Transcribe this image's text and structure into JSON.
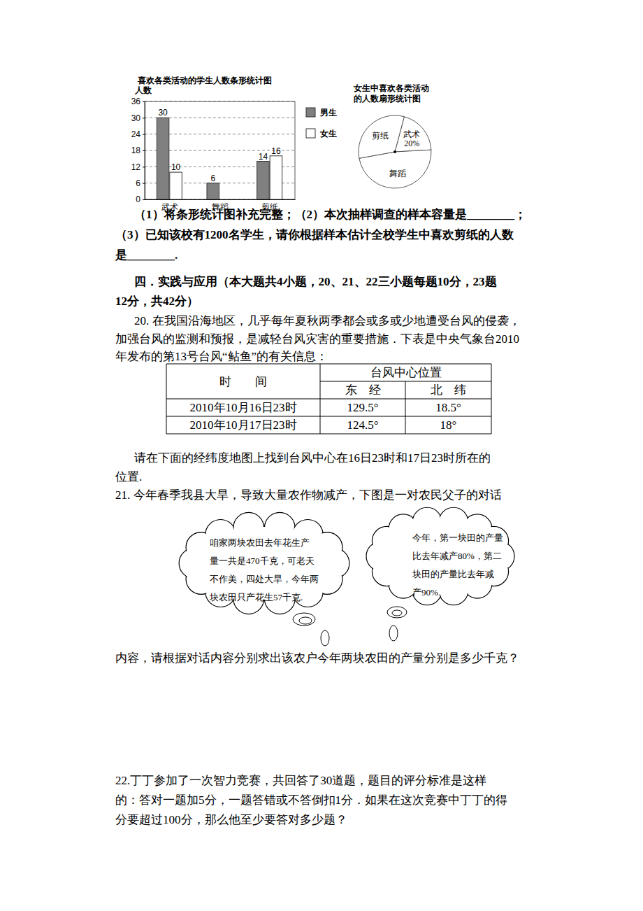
{
  "chart_data": [
    {
      "type": "bar",
      "title": "喜欢各类活动的学生人数条形统计图",
      "y_label": "人数",
      "categories": [
        "武术",
        "舞蹈",
        "剪纸"
      ],
      "series": [
        {
          "name": "男生",
          "color": "#808080",
          "values": [
            30,
            6,
            14
          ]
        },
        {
          "name": "女生",
          "color": "#ffffff",
          "values": [
            10,
            null,
            16
          ]
        }
      ],
      "ylim": [
        0,
        36
      ],
      "yticks": [
        0,
        6,
        12,
        18,
        24,
        30,
        36
      ],
      "grid": true,
      "legend": "right",
      "data_labels": true
    },
    {
      "type": "pie",
      "title": [
        "女生中喜欢各类活动",
        "的人数扇形统计图"
      ],
      "categories": [
        "武术",
        "舞蹈",
        "剪纸"
      ],
      "values": [
        20,
        48,
        32
      ],
      "value_labels": [
        "20%",
        null,
        null
      ],
      "data_labels": true,
      "colors": [
        "#ffffff",
        "#ffffff",
        "#ffffff"
      ]
    }
  ],
  "document": {
    "part_questions": [
      "（1）将条形统计图补充完整；（2）本次抽样调查的样本容量是________；",
      "（3）已知该校有1200名学生，请你根据样本估计全校学生中喜欢剪纸的人数",
      "是________."
    ],
    "section_title": [
      "四．实践与应用（本大题共4小题，20、21、22三小题每题10分，23题",
      "12分，共42分）"
    ],
    "q20": {
      "lines": [
        "20. 在我国沿海地区，几乎每年夏秋两季都会或多或少地遭受台风的侵袭，",
        "加强台风的监测和预报，是减轻台风灾害的重要措施．下表是中央气象台2010",
        "年发布的第13号台风“鲇鱼”的有关信息："
      ],
      "table": {
        "header": [
          "时　　间",
          "台风中心位置"
        ],
        "subheader": [
          "东　经",
          "北　纬"
        ],
        "rows": [
          [
            "2010年10月16日23时",
            "129.5°",
            "18.5°"
          ],
          [
            "2010年10月17日23时",
            "124.5°",
            "18°"
          ]
        ]
      },
      "after": [
        "请在下面的经纬度地图上找到台风中心在16日23时和17日23时所在的",
        "位置."
      ]
    },
    "q21": {
      "lines": [
        "21. 今年春季我县大旱，导致大量农作物减产，下图是一对农民父子的对话"
      ],
      "father": [
        "咱家两块农田去年花生产",
        "量一共是470千克，可老天",
        "不作美，四处大旱，今年两",
        "块农田只产花生57千克."
      ],
      "son": [
        "今年，第一块田的产量",
        "比去年减产80%，第二",
        "块田的产量比去年减",
        "产90%."
      ],
      "after": [
        "内容，请根据对话内容分别求出该农户今年两块农田的产量分别是多少千克？"
      ]
    },
    "q22": {
      "lines": [
        "22.丁丁参加了一次智力竞赛，共回答了30道题，题目的评分标准是这样",
        "的：答对一题加5分，一题答错或不答倒扣1分．如果在这次竞赛中丁丁的得",
        "分要超过100分，那么他至少要答对多少题？"
      ]
    }
  }
}
